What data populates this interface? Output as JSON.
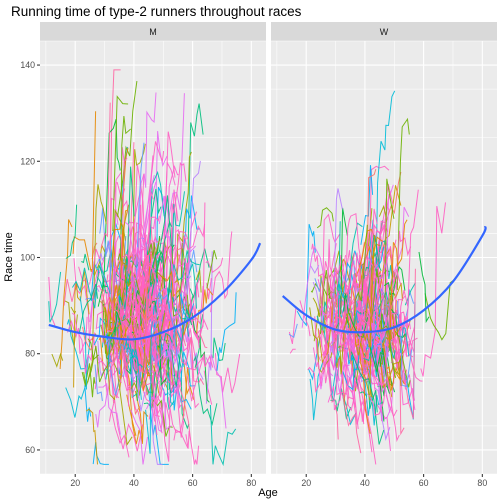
{
  "chart_data": {
    "type": "line",
    "title": "Running time of type-2 runners throughout races",
    "xlabel": "Age",
    "ylabel": "Race time",
    "facets": [
      "M",
      "W"
    ],
    "xlim": [
      8,
      85
    ],
    "ylim": [
      55,
      145
    ],
    "x_ticks": [
      20,
      40,
      60,
      80
    ],
    "y_ticks": [
      60,
      80,
      100,
      120,
      140
    ],
    "grid": true,
    "trajectory_colors": [
      "#F8766D",
      "#E58700",
      "#C99800",
      "#A3A500",
      "#6BB100",
      "#00BA38",
      "#00BF7D",
      "#00C0AF",
      "#00BCD8",
      "#00B0F6",
      "#619CFF",
      "#B983FF",
      "#E76BF3",
      "#FD61D1",
      "#FF67A4",
      "#FF61C3"
    ],
    "series": [
      {
        "name": "M",
        "note_visible": "smoothed trend (blue)",
        "smooth": {
          "x": [
            11,
            20,
            30,
            40,
            50,
            60,
            70,
            80,
            83
          ],
          "y": [
            86,
            84.5,
            83.5,
            83,
            84.5,
            87.5,
            92.5,
            99.5,
            103
          ]
        },
        "cloud": {
          "center_x": 40,
          "center_y": 86,
          "spread_x": 10,
          "spread_y": 8,
          "max_y": 139
        }
      },
      {
        "name": "W",
        "smooth": {
          "x": [
            12,
            20,
            30,
            40,
            50,
            60,
            70,
            80,
            81
          ],
          "y": [
            92,
            88,
            85,
            84.5,
            85.5,
            89,
            95,
            104.5,
            106.5
          ]
        },
        "cloud": {
          "center_x": 37,
          "center_y": 86,
          "spread_x": 8,
          "spread_y": 6.5,
          "max_y": 135
        }
      }
    ]
  }
}
